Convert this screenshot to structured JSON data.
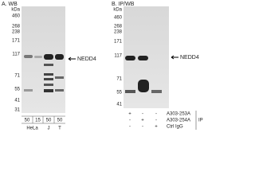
{
  "panel_a": {
    "label": "A. WB",
    "unit": "kDa",
    "markers": [
      460,
      268,
      238,
      171,
      117,
      71,
      55,
      41,
      31
    ],
    "target": "NEDD4",
    "lane_amounts": [
      "50",
      "15",
      "50",
      "50"
    ],
    "cell_lines": [
      "HeLa",
      "J",
      "T"
    ]
  },
  "panel_b": {
    "label": "B. IP/WB",
    "unit": "kDa",
    "markers": [
      460,
      268,
      238,
      171,
      117,
      71,
      55,
      41
    ],
    "target": "NEDD4",
    "rows": [
      {
        "name": "A303-253A",
        "signs": [
          "+",
          "-",
          "-"
        ]
      },
      {
        "name": "A303-254A",
        "signs": [
          "-",
          "+",
          "-"
        ]
      },
      {
        "name": "Ctrl IgG",
        "signs": [
          "-",
          "-",
          "+"
        ]
      }
    ],
    "group_label": "IP"
  }
}
